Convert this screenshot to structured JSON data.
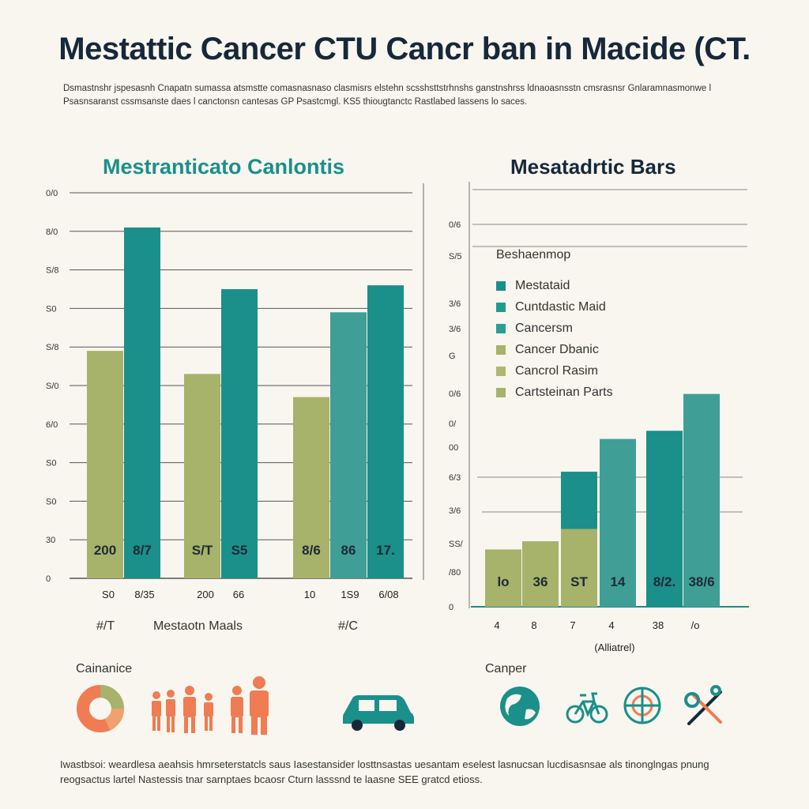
{
  "title": "Mestattic Cancer CTU Cancr ban in Macide (CT.",
  "subtitle": "Dsmastnshr jspesasnh Cnapatn sumassa atsmstte comasnasnaso clasmisrs elstehn scsshsttstrhnshs ganstnshrss ldnaoasnsstn cmsrasnsr Gnlaramnasmonwe l Psasnsaranst cssmsanste daes l canctonsn cantesas GP Psastcmgl. KS5 thiougtanctc Rastlabed lassens lo saces.",
  "left_chart": {
    "title": "Mestranticato Canlontis",
    "yticks": [
      "0",
      "30",
      "S0",
      "S0",
      "6/0",
      "S/0",
      "S/8",
      "S0",
      "S/8",
      "8/0",
      "0/0"
    ],
    "xgroup_labels": [
      "S0",
      "8/35",
      "200",
      "66",
      "10",
      "1S9",
      "6/08"
    ],
    "bottom_labels": [
      "#/T",
      "Mestaotn Maals",
      "#/C"
    ]
  },
  "right_chart": {
    "title": "Mesatadrtic Bars",
    "yticks": [
      "0",
      "/80",
      "SS/",
      "3/6",
      "6/3",
      "00",
      "0/",
      "0/6",
      "G",
      "3/6",
      "3/6",
      "S/5",
      "0/6"
    ],
    "xticks": [
      "4",
      "8",
      "7",
      "4",
      "38",
      "/o"
    ],
    "xlabel": "(Alliatrel)",
    "legend_title": "Beshaenmop",
    "legend": [
      {
        "label": "Mestataid",
        "color": "#1b8f8a"
      },
      {
        "label": "Cuntdastic Maid",
        "color": "#1f9c92"
      },
      {
        "label": "Cancersm",
        "color": "#2a9d94"
      },
      {
        "label": "Cancer Dbanic",
        "color": "#a7b26a"
      },
      {
        "label": "Cancrol Rasim",
        "color": "#aeb872"
      },
      {
        "label": "Cartsteinan Parts",
        "color": "#a7b26a"
      }
    ]
  },
  "chart_data": [
    {
      "type": "bar",
      "title": "Mestranticato Canlontis",
      "groups": [
        {
          "bars": [
            {
              "value": 59,
              "color": "#a7b26a",
              "label": "200"
            },
            {
              "value": 91,
              "color": "#1b8f8a",
              "label": "8/7"
            }
          ]
        },
        {
          "bars": [
            {
              "value": 53,
              "color": "#a7b26a",
              "label": "S/T"
            },
            {
              "value": 75,
              "color": "#1b8f8a",
              "label": "S5"
            }
          ]
        },
        {
          "bars": [
            {
              "value": 47,
              "color": "#a7b26a",
              "label": "8/6"
            },
            {
              "value": 69,
              "color": "#3f9f97",
              "label": "86"
            },
            {
              "value": 76,
              "color": "#1b8f8a",
              "label": "17."
            }
          ]
        }
      ],
      "ylim": [
        0,
        100
      ]
    },
    {
      "type": "bar",
      "title": "Mesatadrtic Bars",
      "categories": [
        "4",
        "8",
        "7",
        "4",
        "38",
        "/o"
      ],
      "values": [
        {
          "total": 14,
          "base": 14,
          "base_color": "#a7b26a",
          "top_color": "#a7b26a",
          "label": "lo"
        },
        {
          "total": 16,
          "base": 16,
          "base_color": "#a7b26a",
          "top_color": "#a7b26a",
          "label": "36"
        },
        {
          "total": 33,
          "base": 19,
          "base_color": "#a7b26a",
          "top_color": "#1b8f8a",
          "label": "ST"
        },
        {
          "total": 41,
          "base": 41,
          "base_color": "#3f9f97",
          "top_color": "#3f9f97",
          "label": "14"
        },
        {
          "total": 43,
          "base": 43,
          "base_color": "#1b8f8a",
          "top_color": "#1b8f8a",
          "label": "8/2."
        },
        {
          "total": 52,
          "base": 52,
          "base_color": "#3f9f97",
          "top_color": "#3f9f97",
          "label": "38/6"
        }
      ],
      "xlabel": "(Alliatrel)",
      "ylim": [
        0,
        100
      ]
    }
  ],
  "bottom": {
    "left_label": "Cainanice",
    "right_label": "Canper"
  },
  "footer": "Iwastbsoi: weardlesa aeahsis hmrseterstatcls saus Iasestansider losttnsastas uesantam eselest lasnucsan lucdisasnsae als tinonglngas pnung reogsactus lartel Nastessis tnar sarnptaes bcaosr Cturn lasssnd te laasne SEE gratcd etioss."
}
